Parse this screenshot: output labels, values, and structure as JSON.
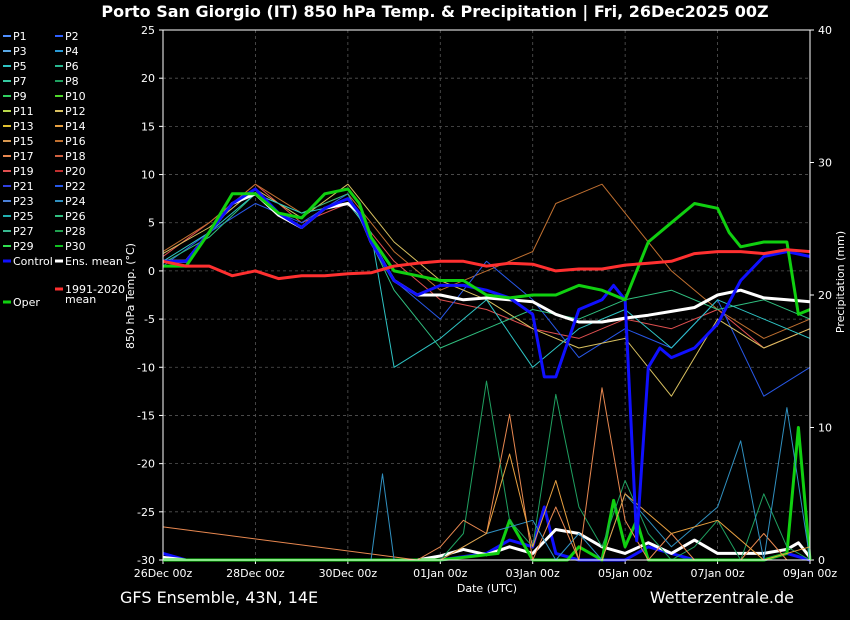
{
  "chart_data": {
    "type": "line",
    "title": "Porto San Giorgio  (IT)  850 hPa Temp. & Precipitation | Fri, 26Dec2025 00Z",
    "xlabel": "Date (UTC)",
    "ylabel": "850 hPa Temp. (°C)",
    "y2label": "Precipitation (mm)",
    "ylim": [
      -30,
      25
    ],
    "y2lim": [
      0,
      40
    ],
    "yticks": [
      "25",
      "20",
      "15",
      "10",
      "5",
      "0",
      "-5",
      "-10",
      "-15",
      "-20",
      "-25",
      "-30"
    ],
    "y2ticks": [
      "40",
      "30",
      "20",
      "10",
      "0"
    ],
    "x_range_hours": [
      0,
      336
    ],
    "xticks": [
      {
        "h": 0,
        "label": "26Dec 00z"
      },
      {
        "h": 48,
        "label": "28Dec 00z"
      },
      {
        "h": 96,
        "label": "30Dec 00z"
      },
      {
        "h": 144,
        "label": "01Jan 00z"
      },
      {
        "h": 192,
        "label": "03Jan 00z"
      },
      {
        "h": 240,
        "label": "05Jan 00z"
      },
      {
        "h": 288,
        "label": "07Jan 00z"
      },
      {
        "h": 336,
        "label": "09Jan 00z"
      }
    ],
    "grid": true,
    "legend_placement": "left",
    "legend": [
      {
        "label": "P1",
        "color": "#4f8fff"
      },
      {
        "label": "P2",
        "color": "#3060ff"
      },
      {
        "label": "P3",
        "color": "#5aa9e6"
      },
      {
        "label": "P4",
        "color": "#2a9ad6"
      },
      {
        "label": "P5",
        "color": "#2ec4c4"
      },
      {
        "label": "P6",
        "color": "#28b890"
      },
      {
        "label": "P7",
        "color": "#35c9a0"
      },
      {
        "label": "P8",
        "color": "#1fa060"
      },
      {
        "label": "P9",
        "color": "#2fd060"
      },
      {
        "label": "P10",
        "color": "#4ed82a"
      },
      {
        "label": "P11",
        "color": "#b8d84a"
      },
      {
        "label": "P12",
        "color": "#d8c060"
      },
      {
        "label": "P13",
        "color": "#e0c030"
      },
      {
        "label": "P14",
        "color": "#e8a040"
      },
      {
        "label": "P15",
        "color": "#d89850"
      },
      {
        "label": "P16",
        "color": "#c07030"
      },
      {
        "label": "P17",
        "color": "#e88850"
      },
      {
        "label": "P18",
        "color": "#d06040"
      },
      {
        "label": "P19",
        "color": "#e05050"
      },
      {
        "label": "P20",
        "color": "#c03030"
      },
      {
        "label": "P21",
        "color": "#3040e0"
      },
      {
        "label": "P22",
        "color": "#2858e8"
      },
      {
        "label": "P23",
        "color": "#4a80d8"
      },
      {
        "label": "P24",
        "color": "#3090c0"
      },
      {
        "label": "P25",
        "color": "#20b0b0"
      },
      {
        "label": "P26",
        "color": "#30c080"
      },
      {
        "label": "P27",
        "color": "#38b890"
      },
      {
        "label": "P28",
        "color": "#20a050"
      },
      {
        "label": "P29",
        "color": "#30e050"
      },
      {
        "label": "P30",
        "color": "#10c020"
      },
      {
        "label": "Control",
        "color": "#1010ff"
      },
      {
        "label": "Ens. mean",
        "color": "#ffffff"
      },
      {
        "label": "1991-2020 mean",
        "color": "#ff3030"
      },
      {
        "label": "Oper",
        "color": "#10d010"
      }
    ],
    "series": [
      {
        "name": "Ens. mean",
        "color": "#ffffff",
        "width": 3,
        "x": [
          0,
          12,
          24,
          36,
          48,
          60,
          72,
          84,
          96,
          102,
          108,
          120,
          132,
          144,
          156,
          168,
          180,
          192,
          204,
          216,
          228,
          240,
          252,
          264,
          276,
          288,
          300,
          312,
          324,
          336
        ],
        "values": [
          1,
          1,
          4,
          7,
          8,
          5.8,
          4.5,
          6.5,
          7,
          6,
          3,
          -1,
          -2.5,
          -2.5,
          -3,
          -2.8,
          -3,
          -3.2,
          -4.5,
          -5.3,
          -5.3,
          -4.9,
          -4.6,
          -4.2,
          -3.8,
          -2.5,
          -2,
          -2.8,
          -3,
          -3.2
        ]
      },
      {
        "name": "Control",
        "color": "#1010ff",
        "width": 3,
        "x": [
          0,
          12,
          24,
          36,
          48,
          60,
          72,
          84,
          96,
          102,
          108,
          120,
          132,
          144,
          156,
          168,
          180,
          192,
          198,
          204,
          216,
          228,
          234,
          240,
          246,
          252,
          258,
          264,
          276,
          288,
          300,
          312,
          324,
          336
        ],
        "values": [
          1,
          1,
          4,
          7,
          8.5,
          6,
          4.5,
          6.5,
          7.5,
          6,
          3,
          -1,
          -2.5,
          -1.5,
          -1.5,
          -2,
          -2.8,
          -4.5,
          -11,
          -11,
          -4,
          -3,
          -1.5,
          -3,
          -28,
          -10,
          -8,
          -9,
          -8,
          -5.5,
          -1,
          1.5,
          2,
          1.5
        ]
      },
      {
        "name": "Oper",
        "color": "#10d010",
        "width": 3,
        "x": [
          0,
          12,
          24,
          36,
          48,
          60,
          72,
          84,
          96,
          102,
          108,
          120,
          132,
          144,
          156,
          168,
          180,
          192,
          204,
          216,
          228,
          240,
          252,
          264,
          276,
          288,
          294,
          300,
          312,
          324,
          330,
          336
        ],
        "values": [
          0.5,
          0.5,
          4,
          8,
          8,
          6,
          5.5,
          8,
          8.5,
          7,
          3.5,
          0,
          -0.5,
          -1,
          -1,
          -2.5,
          -2.8,
          -2.5,
          -2.5,
          -1.5,
          -2,
          -3,
          3,
          5,
          7,
          6.5,
          4,
          2.5,
          3,
          3,
          -4.5,
          -4
        ]
      },
      {
        "name": "1991-2020 mean",
        "color": "#ff3030",
        "width": 3,
        "x": [
          0,
          12,
          24,
          36,
          48,
          60,
          72,
          84,
          96,
          108,
          120,
          132,
          144,
          156,
          168,
          180,
          192,
          204,
          216,
          228,
          240,
          252,
          264,
          276,
          288,
          300,
          312,
          324,
          336
        ],
        "values": [
          1,
          0.5,
          0.5,
          -0.5,
          0,
          -0.8,
          -0.5,
          -0.5,
          -0.3,
          -0.2,
          0.5,
          0.8,
          1,
          1,
          0.5,
          0.8,
          0.7,
          0,
          0.2,
          0.2,
          0.6,
          0.8,
          1,
          1.8,
          2,
          2,
          1.8,
          2.2,
          2
        ]
      },
      {
        "name": "P19",
        "color": "#e05050",
        "width": 1,
        "x": [
          0,
          24,
          48,
          72,
          96,
          120,
          144,
          168,
          192,
          216,
          240,
          264,
          288,
          312,
          336
        ],
        "values": [
          1.5,
          5,
          9,
          5,
          7,
          1,
          -3,
          -4,
          -6,
          -7,
          -5,
          -6,
          -4,
          -8,
          -6
        ]
      },
      {
        "name": "P16",
        "color": "#c07030",
        "width": 1,
        "x": [
          0,
          24,
          48,
          72,
          96,
          120,
          144,
          168,
          192,
          204,
          216,
          228,
          240,
          264,
          288,
          312,
          336
        ],
        "values": [
          2,
          5,
          9,
          6,
          8,
          2,
          -2,
          0,
          2,
          7,
          8,
          9,
          6,
          0,
          -4,
          -7,
          -5
        ]
      },
      {
        "name": "P22",
        "color": "#2858e8",
        "width": 1,
        "x": [
          0,
          24,
          48,
          72,
          96,
          120,
          144,
          168,
          192,
          216,
          240,
          264,
          288,
          312,
          336
        ],
        "values": [
          0.5,
          4,
          7,
          5,
          8,
          -1,
          -5,
          1,
          -3,
          -9,
          -6,
          -8,
          -3,
          -13,
          -10
        ]
      },
      {
        "name": "P12",
        "color": "#d8c060",
        "width": 1,
        "x": [
          0,
          24,
          48,
          72,
          96,
          120,
          144,
          168,
          192,
          216,
          240,
          264,
          288,
          312,
          336
        ],
        "values": [
          1.8,
          4.5,
          8.5,
          5.5,
          9,
          3,
          -1,
          -3,
          -6,
          -8,
          -7,
          -13,
          -5,
          -8,
          -6
        ]
      },
      {
        "name": "P26",
        "color": "#30c080",
        "width": 1,
        "x": [
          0,
          24,
          48,
          72,
          96,
          120,
          144,
          168,
          192,
          216,
          240,
          264,
          288,
          312,
          336
        ],
        "values": [
          0.8,
          3.5,
          8,
          6,
          8,
          -2,
          -8,
          -6,
          -4,
          -5,
          -3,
          -2,
          -4,
          -3,
          -5
        ]
      },
      {
        "name": "P5",
        "color": "#2ec4c4",
        "width": 1,
        "x": [
          0,
          24,
          48,
          72,
          96,
          108,
          120,
          144,
          168,
          192,
          216,
          240,
          264,
          288,
          312,
          336
        ],
        "values": [
          1,
          4,
          8,
          6,
          7,
          4,
          -10,
          -7,
          -3,
          -10,
          -6,
          -4,
          -8,
          -3,
          -5,
          -7
        ]
      }
    ],
    "precip_series": [
      {
        "name": "Control",
        "color": "#1010ff",
        "width": 3,
        "x": [
          0,
          12,
          96,
          144,
          168,
          180,
          192,
          198,
          204,
          216,
          240,
          252,
          264,
          276,
          288,
          300,
          312,
          324,
          336
        ],
        "values": [
          0.5,
          0,
          0,
          0,
          0.5,
          1.5,
          1,
          4,
          0.5,
          0,
          0,
          1,
          0.5,
          0,
          0,
          0,
          0,
          0.5,
          0
        ]
      },
      {
        "name": "Ens. mean",
        "color": "#ffffff",
        "width": 3,
        "x": [
          0,
          12,
          96,
          132,
          144,
          156,
          168,
          180,
          192,
          204,
          216,
          228,
          240,
          252,
          264,
          276,
          288,
          300,
          312,
          324,
          330,
          336
        ],
        "values": [
          0.2,
          0,
          0,
          0,
          0.3,
          0.8,
          0.4,
          1,
          0.5,
          2.3,
          2,
          1,
          0.5,
          1.3,
          0.5,
          1.5,
          0.5,
          0.5,
          0.5,
          0.8,
          1.3,
          0.2
        ]
      },
      {
        "name": "Oper",
        "color": "#10d010",
        "width": 3,
        "x": [
          0,
          12,
          144,
          174,
          180,
          192,
          210,
          216,
          228,
          234,
          240,
          246,
          252,
          264,
          276,
          288,
          312,
          324,
          330,
          336
        ],
        "values": [
          0,
          0,
          0,
          0.5,
          3,
          0,
          0,
          1,
          0,
          4.5,
          1,
          3,
          0,
          0,
          0,
          0,
          0,
          0.5,
          10,
          0
        ]
      },
      {
        "name": "P8",
        "color": "#1fa060",
        "width": 1,
        "x": [
          0,
          144,
          156,
          168,
          180,
          192,
          204,
          216,
          228,
          240,
          252,
          264,
          276,
          288,
          300,
          312,
          324,
          336
        ],
        "values": [
          0,
          0,
          2,
          13.5,
          3,
          1,
          12.5,
          4,
          1,
          6,
          2,
          0,
          1,
          3,
          0,
          5,
          1,
          0
        ]
      },
      {
        "name": "P17",
        "color": "#e88850",
        "width": 1,
        "x": [
          0,
          132,
          144,
          156,
          168,
          180,
          192,
          204,
          216,
          228,
          240,
          252,
          264,
          276,
          288,
          300,
          312,
          324,
          336
        ],
        "values": [
          2.5,
          0,
          1,
          3,
          2,
          11,
          0,
          4,
          0,
          13,
          3,
          0,
          2,
          0,
          0,
          0,
          2,
          0,
          0
        ]
      },
      {
        "name": "P24",
        "color": "#3090c0",
        "width": 1,
        "x": [
          0,
          108,
          114,
          120,
          144,
          168,
          192,
          204,
          216,
          228,
          240,
          264,
          288,
          300,
          312,
          324,
          336
        ],
        "values": [
          0,
          0,
          6.5,
          0,
          0,
          2,
          3,
          0,
          2,
          0,
          5,
          1,
          4,
          9,
          0,
          11.5,
          0
        ]
      },
      {
        "name": "P14",
        "color": "#e8a040",
        "width": 1,
        "x": [
          0,
          144,
          156,
          168,
          180,
          192,
          204,
          216,
          228,
          240,
          264,
          288,
          312,
          336
        ],
        "values": [
          0,
          0,
          1,
          2,
          8,
          1,
          6,
          0,
          0,
          5,
          2,
          3,
          0,
          1
        ]
      }
    ]
  },
  "footer": {
    "left": "GFS Ensemble, 43N, 14E",
    "right": "Wetterzentrale.de"
  }
}
